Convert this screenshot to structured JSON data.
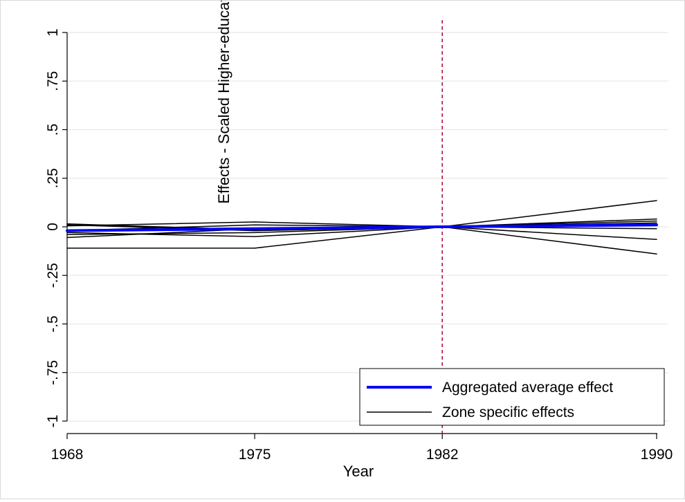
{
  "chart_data": {
    "type": "line",
    "title": "",
    "xlabel": "Year",
    "ylabel": "Effects - Scaled Higher-educated population share",
    "x": [
      1968,
      1975,
      1982,
      1990
    ],
    "xticks": [
      "1968",
      "1975",
      "1982",
      "1990"
    ],
    "yticks": [
      1,
      0.75,
      0.5,
      0.25,
      0,
      -0.25,
      -0.5,
      -0.75,
      -1
    ],
    "ytick_labels": [
      "1",
      ".75",
      ".5",
      ".25",
      "0",
      "-.25",
      "-.5",
      "-.75",
      "-1"
    ],
    "xlim": [
      1968,
      1990
    ],
    "ylim": [
      -1,
      1
    ],
    "grid": "horizontal",
    "legend_position": "bottom-right",
    "reference_line": {
      "x": 1982,
      "style": "dashed",
      "color": "#b0133a"
    },
    "series": [
      {
        "name": "Aggregated average effect",
        "color": "#0000ff",
        "width": 4,
        "values": [
          -0.02,
          -0.01,
          0,
          0.01
        ]
      },
      {
        "name": "Zone specific effects",
        "color": "#000000",
        "width": 1.5,
        "values": [
          -0.11,
          -0.11,
          0,
          0.135
        ]
      },
      {
        "color": "#000000",
        "width": 1.5,
        "values": [
          0.015,
          -0.015,
          0,
          -0.14
        ]
      },
      {
        "color": "#000000",
        "width": 1.5,
        "values": [
          -0.055,
          -0.01,
          0,
          -0.065
        ]
      },
      {
        "color": "#000000",
        "width": 1.5,
        "values": [
          0.005,
          0.025,
          0,
          0.04
        ]
      },
      {
        "color": "#000000",
        "width": 1.5,
        "values": [
          -0.03,
          -0.05,
          0,
          0.03
        ]
      },
      {
        "color": "#000000",
        "width": 1.5,
        "values": [
          -0.02,
          0.01,
          0,
          0.02
        ]
      },
      {
        "color": "#000000",
        "width": 1.5,
        "values": [
          -0.04,
          -0.03,
          0,
          -0.01
        ]
      },
      {
        "color": "#000000",
        "width": 1.5,
        "values": [
          0.01,
          -0.02,
          0,
          0.01
        ]
      }
    ]
  }
}
